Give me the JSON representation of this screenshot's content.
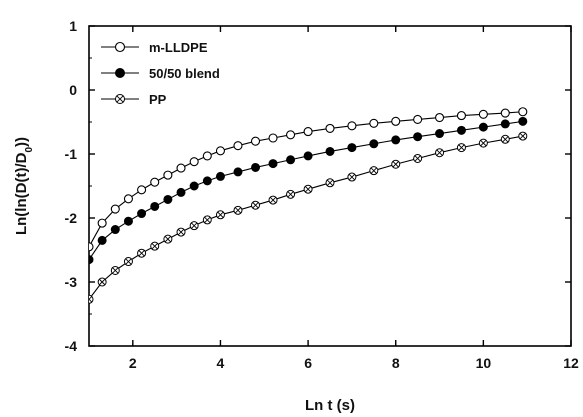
{
  "chart_data": {
    "type": "scatter",
    "xlabel": "Ln t (s)",
    "ylabel": "Ln(ln(D(t)/D",
    "ylabel_sub": "0",
    "ylabel_tail": "))",
    "xlim": [
      1,
      12
    ],
    "ylim": [
      -4,
      1
    ],
    "xticks": [
      2,
      4,
      6,
      8,
      10,
      12
    ],
    "yticks": [
      1,
      0,
      -1,
      -2,
      -3,
      -4
    ],
    "legend_position": "top-left",
    "series": [
      {
        "name": "m-LLDPE",
        "marker": "open-circle",
        "color": "#000000",
        "x": [
          1.0,
          1.3,
          1.6,
          1.9,
          2.2,
          2.5,
          2.8,
          3.1,
          3.4,
          3.7,
          4.0,
          4.4,
          4.8,
          5.2,
          5.6,
          6.0,
          6.5,
          7.0,
          7.5,
          8.0,
          8.5,
          9.0,
          9.5,
          10.0,
          10.5,
          10.9
        ],
        "y": [
          -2.45,
          -2.08,
          -1.86,
          -1.7,
          -1.56,
          -1.44,
          -1.33,
          -1.22,
          -1.12,
          -1.03,
          -0.95,
          -0.87,
          -0.8,
          -0.75,
          -0.7,
          -0.65,
          -0.6,
          -0.56,
          -0.52,
          -0.49,
          -0.46,
          -0.43,
          -0.4,
          -0.38,
          -0.36,
          -0.34
        ]
      },
      {
        "name": "50/50 blend",
        "marker": "filled-circle",
        "color": "#000000",
        "x": [
          1.0,
          1.3,
          1.6,
          1.9,
          2.2,
          2.5,
          2.8,
          3.1,
          3.4,
          3.7,
          4.0,
          4.4,
          4.8,
          5.2,
          5.6,
          6.0,
          6.5,
          7.0,
          7.5,
          8.0,
          8.5,
          9.0,
          9.5,
          10.0,
          10.5,
          10.9
        ],
        "y": [
          -2.65,
          -2.35,
          -2.18,
          -2.05,
          -1.93,
          -1.82,
          -1.71,
          -1.6,
          -1.5,
          -1.42,
          -1.35,
          -1.28,
          -1.21,
          -1.15,
          -1.09,
          -1.03,
          -0.96,
          -0.9,
          -0.84,
          -0.78,
          -0.73,
          -0.68,
          -0.63,
          -0.58,
          -0.53,
          -0.49
        ]
      },
      {
        "name": "PP",
        "marker": "crossed-circle",
        "color": "#000000",
        "x": [
          1.0,
          1.3,
          1.6,
          1.9,
          2.2,
          2.5,
          2.8,
          3.1,
          3.4,
          3.7,
          4.0,
          4.4,
          4.8,
          5.2,
          5.6,
          6.0,
          6.5,
          7.0,
          7.5,
          8.0,
          8.5,
          9.0,
          9.5,
          10.0,
          10.5,
          10.9
        ],
        "y": [
          -3.27,
          -3.0,
          -2.82,
          -2.68,
          -2.55,
          -2.44,
          -2.33,
          -2.22,
          -2.12,
          -2.03,
          -1.95,
          -1.88,
          -1.8,
          -1.72,
          -1.63,
          -1.55,
          -1.45,
          -1.36,
          -1.26,
          -1.16,
          -1.07,
          -0.98,
          -0.9,
          -0.83,
          -0.77,
          -0.72
        ]
      }
    ]
  }
}
